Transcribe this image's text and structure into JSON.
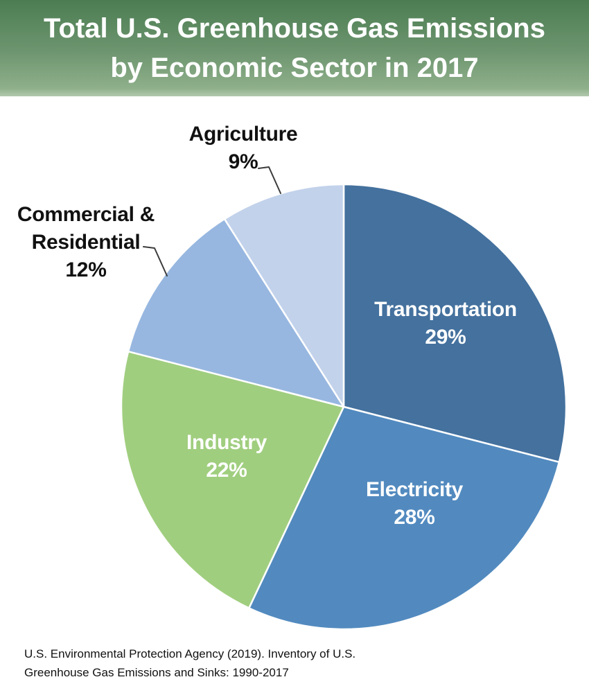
{
  "header": {
    "title_line1": "Total U.S. Greenhouse Gas Emissions",
    "title_line2": "by Economic Sector in 2017",
    "banner_gradient_top": "#4C7D52",
    "banner_gradient_bottom": "#8FB08B"
  },
  "chart_data": {
    "type": "pie",
    "title": "Total U.S. Greenhouse Gas Emissions by Economic Sector in 2017",
    "start_angle_deg": 0,
    "direction": "clockwise",
    "units": "percent",
    "slices": [
      {
        "label": "Transportation",
        "value": 29,
        "display": "29%",
        "color": "#44719E",
        "label_color": "#FFFFFF",
        "label_position": "inside"
      },
      {
        "label": "Electricity",
        "value": 28,
        "display": "28%",
        "color": "#528ABF",
        "label_color": "#FFFFFF",
        "label_position": "inside"
      },
      {
        "label": "Industry",
        "value": 22,
        "display": "22%",
        "color": "#A0CE7F",
        "label_color": "#FFFFFF",
        "label_position": "inside"
      },
      {
        "label": "Commercial & Residential",
        "value": 12,
        "display": "12%",
        "color": "#97B7E0",
        "label_color": "#111111",
        "label_position": "outside"
      },
      {
        "label": "Agriculture",
        "value": 9,
        "display": "9%",
        "color": "#C2D2EB",
        "label_color": "#111111",
        "label_position": "outside"
      }
    ]
  },
  "footer": {
    "line1": "U.S. Environmental Protection Agency (2019). Inventory of U.S.",
    "line2": "Greenhouse Gas Emissions and Sinks: 1990-2017"
  }
}
